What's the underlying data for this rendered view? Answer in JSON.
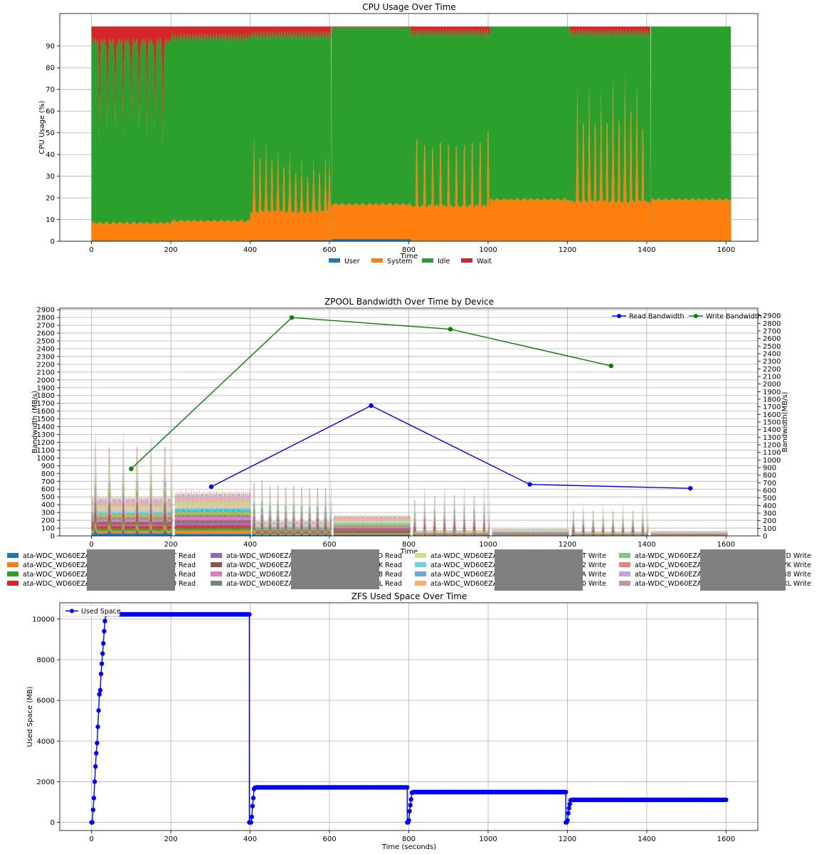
{
  "chart_data": [
    {
      "type": "area",
      "stacked": true,
      "title": "CPU Usage Over Time",
      "xlabel": "Time",
      "ylabel": "CPU Usage (%)",
      "xlim": [
        -80,
        1680
      ],
      "ylim": [
        0,
        105
      ],
      "xticks": [
        0,
        200,
        400,
        600,
        800,
        1000,
        1200,
        1400,
        1600
      ],
      "yticks": [
        0,
        10,
        20,
        30,
        40,
        50,
        60,
        70,
        80,
        90
      ],
      "grid": true,
      "legend_position": "bottom-center",
      "series": [
        {
          "name": "User",
          "color": "#1f77b4"
        },
        {
          "name": "System",
          "color": "#ff7f0e"
        },
        {
          "name": "Idle",
          "color": "#2ca02c"
        },
        {
          "name": "Wait",
          "color": "#d62728"
        }
      ],
      "x": [
        0,
        10,
        20,
        40,
        60,
        80,
        100,
        120,
        140,
        160,
        180,
        200,
        210,
        300,
        398,
        402,
        410,
        500,
        600,
        610,
        700,
        800,
        810,
        900,
        1000,
        1010,
        1100,
        1200,
        1210,
        1300,
        1400,
        1410,
        1500,
        1612
      ],
      "phases": [
        {
          "x_start": 0,
          "x_end": 200,
          "user": 0.3,
          "system": 8,
          "idle": 84,
          "wait": 7
        },
        {
          "x_start": 200,
          "x_end": 400,
          "user": 0.3,
          "system": 9,
          "idle": 85,
          "wait": 5
        },
        {
          "x_start": 400,
          "x_end": 605,
          "user": 0.5,
          "system": 13,
          "idle": 82,
          "wait": 4
        },
        {
          "x_start": 605,
          "x_end": 805,
          "user": 1,
          "system": 16,
          "idle": 82,
          "wait": 0.5
        },
        {
          "x_start": 805,
          "x_end": 1005,
          "user": 0.2,
          "system": 16,
          "idle": 80,
          "wait": 3
        },
        {
          "x_start": 1005,
          "x_end": 1205,
          "user": 0.2,
          "system": 19,
          "idle": 80,
          "wait": 0
        },
        {
          "x_start": 1205,
          "x_end": 1410,
          "user": 0.2,
          "system": 18,
          "idle": 78,
          "wait": 3
        },
        {
          "x_start": 1410,
          "x_end": 1612,
          "user": 0.2,
          "system": 19,
          "idle": 80,
          "wait": 0
        }
      ],
      "system_spikes": {
        "x": [
          410,
          425,
          440,
          455,
          470,
          485,
          500,
          515,
          530,
          545,
          560,
          575,
          590,
          600,
          820,
          840,
          860,
          880,
          900,
          920,
          940,
          960,
          980,
          1000,
          1225,
          1240,
          1255,
          1270,
          1285,
          1300,
          1315,
          1330,
          1345,
          1360,
          1375,
          1390
        ],
        "values": [
          48,
          50,
          46,
          48,
          42,
          44,
          41,
          40,
          38,
          37,
          38,
          40,
          39,
          40,
          62,
          58,
          56,
          60,
          58,
          57,
          58,
          60,
          60,
          68,
          70,
          72,
          73,
          72,
          70,
          72,
          75,
          74,
          78,
          80,
          72,
          68
        ]
      },
      "wait_dips": {
        "x": [
          20,
          40,
          60,
          80,
          100,
          120,
          140,
          160,
          180
        ],
        "bottom_values": [
          48,
          50,
          52,
          50,
          52,
          50,
          50,
          50,
          42
        ]
      }
    },
    {
      "type": "area",
      "stacked": true,
      "title": "ZPOOL Bandwidth Over Time by Device",
      "xlabel": "Time",
      "ylabel": "Bandwidth (MB/s)",
      "y2label": "Bandwidth(MB/s)",
      "xlim": [
        -80,
        1680
      ],
      "ylim": [
        0,
        2920
      ],
      "y2lim": [
        0,
        3000
      ],
      "xticks": [
        0,
        200,
        400,
        600,
        800,
        1000,
        1200,
        1400,
        1600
      ],
      "yticks": [
        0,
        100,
        200,
        300,
        400,
        500,
        600,
        700,
        800,
        900,
        1000,
        1100,
        1200,
        1300,
        1400,
        1500,
        1600,
        1700,
        1800,
        1900,
        2000,
        2100,
        2200,
        2300,
        2400,
        2500,
        2600,
        2700,
        2800,
        2900
      ],
      "y2ticks": [
        0,
        100,
        200,
        300,
        400,
        500,
        600,
        700,
        800,
        900,
        1000,
        1100,
        1200,
        1300,
        1400,
        1500,
        1600,
        1700,
        1800,
        1900,
        2000,
        2100,
        2200,
        2300,
        2400,
        2500,
        2600,
        2700,
        2800,
        2900
      ],
      "grid": true,
      "legend_position": "top-right",
      "device_colors": [
        "#1f77b4",
        "#ff7f0e",
        "#2ca02c",
        "#d62728",
        "#9467bd",
        "#8c564b",
        "#e377c2",
        "#7f7f7f",
        "#bcbd22",
        "#17becf",
        "#aec7e8",
        "#ffbb78",
        "#98df8a",
        "#ff9896",
        "#c5b0d5",
        "#c49c94"
      ],
      "phases": [
        {
          "x_start": 0,
          "x_end": 205,
          "base": 600,
          "spike_x": [
            10,
            45,
            80,
            115,
            150,
            185,
            205
          ],
          "spike_values": [
            1580,
            1570,
            1600,
            1580,
            1560,
            1580,
            1540
          ]
        },
        {
          "x_start": 210,
          "x_end": 402,
          "base": 700,
          "spike_x": [],
          "spike_values": []
        },
        {
          "x_start": 405,
          "x_end": 605,
          "base": 230,
          "spike_x": [
            410,
            430,
            450,
            470,
            490,
            510,
            530,
            550,
            570,
            590,
            605
          ],
          "spike_values": [
            980,
            1040,
            920,
            930,
            880,
            900,
            880,
            860,
            880,
            880,
            900
          ]
        },
        {
          "x_start": 610,
          "x_end": 805,
          "base": 320,
          "spike_x": [],
          "spike_values": []
        },
        {
          "x_start": 810,
          "x_end": 1005,
          "base": 90,
          "spike_x": [
            815,
            840,
            865,
            890,
            915,
            940,
            965,
            990,
            1005
          ],
          "spike_values": [
            700,
            780,
            770,
            790,
            780,
            780,
            780,
            800,
            900
          ]
        },
        {
          "x_start": 1010,
          "x_end": 1205,
          "base": 110,
          "spike_x": [],
          "spike_values": []
        },
        {
          "x_start": 1210,
          "x_end": 1405,
          "base": 70,
          "spike_x": [
            1215,
            1240,
            1265,
            1290,
            1315,
            1340,
            1365,
            1390,
            1405
          ],
          "spike_values": [
            470,
            480,
            470,
            470,
            470,
            470,
            480,
            480,
            480
          ]
        },
        {
          "x_start": 1410,
          "x_end": 1605,
          "base": 80,
          "spike_x": [],
          "spike_values": []
        }
      ],
      "lines": [
        {
          "name": "Read Bandwidth",
          "color": "#0000ff",
          "axis": "left",
          "x": [
            302,
            705,
            1105,
            1510
          ],
          "values": [
            630,
            1670,
            660,
            610
          ]
        },
        {
          "name": "Write Bandwidth",
          "color": "#008000",
          "axis": "left",
          "x": [
            100,
            505,
            905,
            1310
          ],
          "values": [
            860,
            2800,
            2650,
            2180
          ]
        }
      ],
      "device_legend": [
        {
          "color": "#1f77b4",
          "prefix": "ata-WDC_WD60EZAX",
          "suffix": "T Read"
        },
        {
          "color": "#ff7f0e",
          "prefix": "ata-WDC_WD60EZAX",
          "suffix": "2 Read"
        },
        {
          "color": "#2ca02c",
          "prefix": "ata-WDC_WD60EZAX",
          "suffix": "A Read"
        },
        {
          "color": "#d62728",
          "prefix": "ata-WDC_WD60EZAX",
          "suffix": "C0 Read"
        },
        {
          "color": "#9467bd",
          "prefix": "ata-WDC_WD60EZAX-",
          "suffix": "DD Read"
        },
        {
          "color": "#8c564b",
          "prefix": "ata-WDC_WD60EZAX-",
          "suffix": "VK Read"
        },
        {
          "color": "#e377c2",
          "prefix": "ata-WDC_WD60EZAX-",
          "suffix": "38 Read"
        },
        {
          "color": "#7f7f7f",
          "prefix": "ata-WDC_WD60EZAX-",
          "suffix": "XL Read"
        },
        {
          "color": "#dbdb8d",
          "prefix": "ata-WDC_WD60EZAX",
          "suffix": "3T Write"
        },
        {
          "color": "#6fd3e0",
          "prefix": "ata-WDC_WD60EZAX",
          "suffix": "Y2 Write"
        },
        {
          "color": "#6fa7d6",
          "prefix": "ata-WDC_WD60EZAX",
          "suffix": "JA Write"
        },
        {
          "color": "#fdb06e",
          "prefix": "ata-WDC_WD60EZAX",
          "suffix": "1C0 Write"
        },
        {
          "color": "#7fc97f",
          "prefix": "ata-WDC_WD60EZAX-",
          "suffix": "DD Write"
        },
        {
          "color": "#e78282",
          "prefix": "ata-WDC_WD60EZAX-",
          "suffix": "VK Write"
        },
        {
          "color": "#c0a6dc",
          "prefix": "ata-WDC_WD60EZAX-",
          "suffix": "38 Write"
        },
        {
          "color": "#c09a8c",
          "prefix": "ata-WDC_WD60EZAX-",
          "suffix": "XL Write"
        }
      ]
    },
    {
      "type": "line",
      "title": "ZFS Used Space Over Time",
      "xlabel": "Time (seconds)",
      "ylabel": "Used Space (MB)",
      "xlim": [
        -80,
        1680
      ],
      "ylim": [
        -400,
        10800
      ],
      "xticks": [
        0,
        200,
        400,
        600,
        800,
        1000,
        1200,
        1400,
        1600
      ],
      "yticks": [
        0,
        2000,
        4000,
        6000,
        8000,
        10000
      ],
      "grid": true,
      "legend_position": "top-left",
      "series": [
        {
          "name": "Used Space",
          "color": "#0000ff",
          "segments": [
            {
              "x": [
                0,
                2,
                4,
                6,
                8,
                10,
                12,
                14,
                16,
                18,
                20,
                22,
                24,
                26,
                28
              ],
              "values": [
                0,
                0,
                620,
                1200,
                2000,
                2750,
                3400,
                3900,
                4700,
                5500,
                6300,
                6500,
                7300,
                7800,
                8300
              ]
            },
            {
              "x": [
                30,
                32,
                34,
                36,
                38,
                40
              ],
              "values": [
                8800,
                9400,
                9900,
                10200,
                10230,
                10230
              ]
            },
            {
              "dense_from": 40,
              "dense_to": 398,
              "value": 10230
            },
            {
              "x": [
                398,
                400,
                402,
                404,
                406,
                408,
                410,
                412,
                414,
                416
              ],
              "values": [
                0,
                0,
                0,
                270,
                800,
                1200,
                1640,
                1700,
                1710,
                1720
              ]
            },
            {
              "dense_from": 416,
              "dense_to": 796,
              "value": 1720
            },
            {
              "x": [
                796,
                798,
                800,
                802,
                804,
                806,
                808,
                810,
                812
              ],
              "values": [
                0,
                0,
                100,
                550,
                850,
                1130,
                1460,
                1480,
                1490
              ]
            },
            {
              "dense_from": 812,
              "dense_to": 1196,
              "value": 1490
            },
            {
              "x": [
                1196,
                1198,
                1200,
                1202,
                1204,
                1206,
                1208,
                1210,
                1212
              ],
              "values": [
                0,
                0,
                100,
                450,
                700,
                900,
                1090,
                1100,
                1110
              ]
            },
            {
              "dense_from": 1212,
              "dense_to": 1600,
              "value": 1110
            }
          ]
        }
      ]
    }
  ]
}
